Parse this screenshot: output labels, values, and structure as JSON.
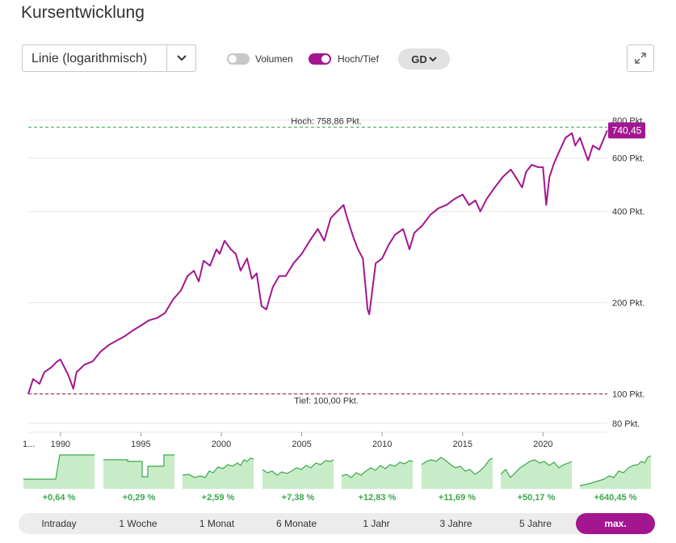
{
  "title": "Kursentwicklung",
  "chart_type_select": {
    "value": "Linie (logarithmisch)"
  },
  "toggles": [
    {
      "label": "Volumen",
      "on": false
    },
    {
      "label": "Hoch/Tief",
      "on": true
    }
  ],
  "gd_button": "GD",
  "colors": {
    "accent": "#a3168f",
    "high_line": "#3aa84a",
    "low_line": "#8b1a2b",
    "thumb_fill": "#c8ecc8",
    "thumb_line": "#3aa84a"
  },
  "chart_data": {
    "type": "line",
    "scale": "log",
    "ylim": [
      78,
      860
    ],
    "yticks": [
      80,
      100,
      200,
      400,
      600,
      800
    ],
    "ytick_labels": [
      "80 Pkt.",
      "100 Pkt.",
      "200 Pkt.",
      "400 Pkt.",
      "600 Pkt.",
      "800 Pkt."
    ],
    "xlim": [
      1988.0,
      2024.0
    ],
    "xticks": [
      1990,
      1995,
      2000,
      2005,
      2010,
      2015,
      2020
    ],
    "x_start_label": "1...",
    "high": {
      "value": 758.86,
      "label": "Hoch: 758,86 Pkt."
    },
    "low": {
      "value": 100.0,
      "label": "Tief: 100,00 Pkt."
    },
    "last_value": "740,45",
    "series": [
      {
        "x": [
          1988.0,
          1988.3,
          1988.7,
          1989.0,
          1989.4,
          1989.8,
          1990.0,
          1990.5,
          1990.8,
          1991.0,
          1991.5,
          1992.0,
          1992.5,
          1993.0,
          1993.5,
          1994.0,
          1994.5,
          1995.0,
          1995.5,
          1996.0,
          1996.5,
          1997.0,
          1997.5,
          1997.9,
          1998.3,
          1998.6,
          1998.9,
          1999.3,
          1999.7,
          1999.9,
          2000.2,
          2000.6,
          2000.9,
          2001.2,
          2001.6,
          2001.9,
          2002.2,
          2002.5,
          2002.8,
          2003.2,
          2003.6,
          2004.0,
          2004.5,
          2005.0,
          2005.5,
          2006.0,
          2006.4,
          2006.8,
          2007.2,
          2007.6,
          2007.8,
          2008.2,
          2008.5,
          2008.8,
          2009.1,
          2009.2,
          2009.6,
          2010.0,
          2010.4,
          2010.8,
          2011.3,
          2011.7,
          2012.0,
          2012.5,
          2013.0,
          2013.5,
          2014.0,
          2014.5,
          2015.0,
          2015.4,
          2015.8,
          2016.1,
          2016.5,
          2017.0,
          2017.5,
          2018.0,
          2018.3,
          2018.7,
          2018.95,
          2019.3,
          2019.7,
          2020.0,
          2020.2,
          2020.4,
          2020.7,
          2021.0,
          2021.4,
          2021.8,
          2022.0,
          2022.3,
          2022.7,
          2022.8,
          2023.1,
          2023.5,
          2023.8,
          2024.0
        ],
        "values": [
          100,
          112,
          108,
          118,
          122,
          128,
          130,
          115,
          104,
          118,
          125,
          128,
          138,
          145,
          150,
          155,
          162,
          168,
          175,
          178,
          185,
          205,
          220,
          245,
          255,
          235,
          275,
          265,
          300,
          290,
          320,
          300,
          290,
          255,
          280,
          240,
          250,
          195,
          190,
          225,
          245,
          245,
          270,
          290,
          320,
          350,
          320,
          380,
          400,
          420,
          385,
          330,
          300,
          280,
          190,
          183,
          270,
          280,
          310,
          335,
          350,
          300,
          340,
          360,
          390,
          410,
          420,
          440,
          455,
          420,
          435,
          400,
          440,
          480,
          520,
          550,
          520,
          480,
          540,
          570,
          560,
          560,
          420,
          520,
          580,
          630,
          700,
          725,
          660,
          700,
          610,
          590,
          660,
          640,
          700,
          740.45
        ]
      }
    ]
  },
  "thumbnails": [
    {
      "label": "+0,64 %",
      "points": [
        [
          0,
          32
        ],
        [
          40,
          32
        ],
        [
          45,
          2
        ],
        [
          88,
          2
        ]
      ]
    },
    {
      "label": "+0,29 %",
      "points": [
        [
          0,
          8
        ],
        [
          30,
          8
        ],
        [
          30,
          10
        ],
        [
          48,
          10
        ],
        [
          48,
          29
        ],
        [
          55,
          29
        ],
        [
          55,
          16
        ],
        [
          75,
          16
        ],
        [
          75,
          2
        ],
        [
          88,
          2
        ]
      ]
    },
    {
      "label": "+2,59 %",
      "points": [
        [
          0,
          27
        ],
        [
          8,
          26
        ],
        [
          15,
          30
        ],
        [
          22,
          28
        ],
        [
          28,
          30
        ],
        [
          33,
          22
        ],
        [
          38,
          24
        ],
        [
          44,
          17
        ],
        [
          50,
          19
        ],
        [
          56,
          14
        ],
        [
          62,
          16
        ],
        [
          68,
          12
        ],
        [
          72,
          15
        ],
        [
          76,
          8
        ],
        [
          80,
          10
        ],
        [
          84,
          6
        ],
        [
          88,
          7
        ]
      ]
    },
    {
      "label": "+7,38 %",
      "points": [
        [
          0,
          20
        ],
        [
          6,
          24
        ],
        [
          12,
          22
        ],
        [
          18,
          27
        ],
        [
          24,
          23
        ],
        [
          30,
          25
        ],
        [
          36,
          22
        ],
        [
          42,
          18
        ],
        [
          48,
          20
        ],
        [
          54,
          15
        ],
        [
          60,
          18
        ],
        [
          66,
          12
        ],
        [
          72,
          14
        ],
        [
          78,
          9
        ],
        [
          84,
          10
        ],
        [
          88,
          8
        ]
      ]
    },
    {
      "label": "+12,83 %",
      "points": [
        [
          0,
          28
        ],
        [
          6,
          26
        ],
        [
          12,
          30
        ],
        [
          18,
          24
        ],
        [
          24,
          27
        ],
        [
          30,
          22
        ],
        [
          36,
          18
        ],
        [
          42,
          21
        ],
        [
          48,
          15
        ],
        [
          54,
          19
        ],
        [
          60,
          14
        ],
        [
          66,
          16
        ],
        [
          72,
          11
        ],
        [
          78,
          13
        ],
        [
          84,
          9
        ],
        [
          88,
          10
        ]
      ]
    },
    {
      "label": "+11,69 %",
      "points": [
        [
          0,
          14
        ],
        [
          6,
          10
        ],
        [
          12,
          8
        ],
        [
          18,
          10
        ],
        [
          24,
          5
        ],
        [
          30,
          9
        ],
        [
          36,
          14
        ],
        [
          42,
          18
        ],
        [
          48,
          16
        ],
        [
          54,
          22
        ],
        [
          60,
          20
        ],
        [
          66,
          26
        ],
        [
          72,
          22
        ],
        [
          78,
          16
        ],
        [
          84,
          8
        ],
        [
          88,
          6
        ]
      ]
    },
    {
      "label": "+50,17 %",
      "points": [
        [
          0,
          26
        ],
        [
          6,
          20
        ],
        [
          12,
          30
        ],
        [
          18,
          24
        ],
        [
          24,
          18
        ],
        [
          30,
          14
        ],
        [
          36,
          10
        ],
        [
          42,
          8
        ],
        [
          48,
          12
        ],
        [
          54,
          10
        ],
        [
          60,
          15
        ],
        [
          66,
          11
        ],
        [
          72,
          18
        ],
        [
          78,
          14
        ],
        [
          84,
          12
        ],
        [
          88,
          10
        ]
      ]
    },
    {
      "label": "+640,45 %",
      "points": [
        [
          0,
          40
        ],
        [
          10,
          38
        ],
        [
          20,
          35
        ],
        [
          30,
          32
        ],
        [
          36,
          28
        ],
        [
          42,
          30
        ],
        [
          48,
          22
        ],
        [
          54,
          24
        ],
        [
          60,
          18
        ],
        [
          66,
          15
        ],
        [
          72,
          14
        ],
        [
          76,
          10
        ],
        [
          80,
          12
        ],
        [
          84,
          5
        ],
        [
          88,
          3
        ]
      ]
    }
  ],
  "tabs": [
    {
      "label": "Intraday",
      "active": false
    },
    {
      "label": "1 Woche",
      "active": false
    },
    {
      "label": "1 Monat",
      "active": false
    },
    {
      "label": "6 Monate",
      "active": false
    },
    {
      "label": "1 Jahr",
      "active": false
    },
    {
      "label": "3 Jahre",
      "active": false
    },
    {
      "label": "5 Jahre",
      "active": false
    },
    {
      "label": "max.",
      "active": true
    }
  ]
}
